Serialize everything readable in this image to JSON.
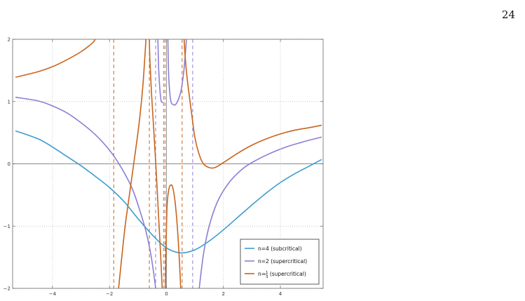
{
  "page": {
    "number": "24"
  },
  "chart_data": {
    "type": "line",
    "title": "",
    "xlabel": "",
    "ylabel": "",
    "xlim": [
      -5.4,
      5.5
    ],
    "ylim": [
      -2,
      2
    ],
    "grid": true,
    "legend_position": "bottom-right",
    "x_ticks": [
      -4,
      -2,
      0,
      2,
      4
    ],
    "y_ticks": [
      -2,
      -1,
      0,
      1,
      2
    ],
    "x_tick_labels": [
      "−4",
      "−2",
      "0",
      "2",
      "4"
    ],
    "y_tick_labels": [
      "−2",
      "−1",
      "0",
      "1",
      "2"
    ],
    "series": [
      {
        "name": "n=4 (subcritical)",
        "label": "n=4 (subcritical)",
        "color": "#3b9ccf",
        "segments": [
          [
            [
              -5.3,
              0.53
            ],
            [
              -4.5,
              0.4
            ],
            [
              -4,
              0.27
            ],
            [
              -3.5,
              0.12
            ],
            [
              -3,
              -0.03
            ],
            [
              -2.5,
              -0.2
            ],
            [
              -2,
              -0.38
            ],
            [
              -1.5,
              -0.6
            ],
            [
              -1,
              -0.88
            ],
            [
              -0.5,
              -1.14
            ],
            [
              0,
              -1.35
            ],
            [
              0.5,
              -1.43
            ],
            [
              1,
              -1.38
            ],
            [
              1.5,
              -1.24
            ],
            [
              2,
              -1.06
            ],
            [
              2.5,
              -0.86
            ],
            [
              3,
              -0.66
            ],
            [
              3.5,
              -0.47
            ],
            [
              4,
              -0.3
            ],
            [
              4.5,
              -0.16
            ],
            [
              5,
              -0.04
            ],
            [
              5.45,
              0.07
            ]
          ]
        ],
        "asymptotes": []
      },
      {
        "name": "n=2 (supercritical)",
        "label": "n=2 (supercritical)",
        "color": "#8c7fd4",
        "segments": [
          [
            [
              -5.3,
              1.07
            ],
            [
              -4.5,
              1.01
            ],
            [
              -4,
              0.93
            ],
            [
              -3.5,
              0.82
            ],
            [
              -3,
              0.66
            ],
            [
              -2.5,
              0.47
            ],
            [
              -2,
              0.22
            ],
            [
              -1.6,
              -0.05
            ],
            [
              -1.2,
              -0.4
            ],
            [
              -0.9,
              -0.8
            ],
            [
              -0.7,
              -1.12
            ],
            [
              -0.55,
              -1.45
            ],
            [
              -0.45,
              -1.75
            ],
            [
              -0.38,
              -2.0
            ]
          ],
          [
            [
              -0.3,
              2.0
            ],
            [
              -0.27,
              1.5
            ],
            [
              -0.2,
              1.05
            ],
            [
              -0.12,
              0.98
            ]
          ],
          [
            [
              0.05,
              2.0
            ],
            [
              0.08,
              1.4
            ],
            [
              0.15,
              1.02
            ],
            [
              0.25,
              0.95
            ],
            [
              0.35,
              0.97
            ],
            [
              0.5,
              1.15
            ],
            [
              0.6,
              1.45
            ],
            [
              0.67,
              1.8
            ],
            [
              0.7,
              2.0
            ]
          ],
          [
            [
              1.15,
              -2.0
            ],
            [
              1.3,
              -1.45
            ],
            [
              1.5,
              -1.0
            ],
            [
              1.8,
              -0.6
            ],
            [
              2.2,
              -0.3
            ],
            [
              2.7,
              -0.07
            ],
            [
              3.2,
              0.07
            ],
            [
              3.7,
              0.18
            ],
            [
              4.2,
              0.27
            ],
            [
              4.7,
              0.34
            ],
            [
              5.1,
              0.39
            ],
            [
              5.45,
              0.43
            ]
          ]
        ],
        "asymptotes": [
          -0.38,
          -0.1,
          0.92
        ]
      },
      {
        "name": "n=1/3 (supercritical)",
        "label_prefix": "n=",
        "label_num": "1",
        "label_den": "3",
        "label_suffix": " (supercritical)",
        "color": "#c8641c",
        "segments": [
          [
            [
              -5.3,
              1.39
            ],
            [
              -4.5,
              1.48
            ],
            [
              -4,
              1.56
            ],
            [
              -3.5,
              1.67
            ],
            [
              -3,
              1.8
            ],
            [
              -2.6,
              1.94
            ],
            [
              -2.5,
              2.0
            ]
          ],
          [
            [
              -1.68,
              -2.0
            ],
            [
              -1.58,
              -1.55
            ],
            [
              -1.45,
              -1.0
            ],
            [
              -1.3,
              -0.5
            ],
            [
              -1.15,
              0.0
            ],
            [
              -1.0,
              0.5
            ],
            [
              -0.9,
              0.9
            ],
            [
              -0.82,
              1.3
            ],
            [
              -0.76,
              1.7
            ],
            [
              -0.72,
              2.0
            ]
          ],
          [
            [
              -0.6,
              2.0
            ],
            [
              -0.58,
              1.65
            ],
            [
              -0.52,
              1.1
            ],
            [
              -0.44,
              0.5
            ],
            [
              -0.35,
              -0.2
            ],
            [
              -0.27,
              -0.9
            ],
            [
              -0.2,
              -1.5
            ],
            [
              -0.15,
              -2.0
            ]
          ],
          [
            [
              -0.04,
              -2.0
            ],
            [
              -0.02,
              -1.5
            ],
            [
              0.02,
              -0.7
            ],
            [
              0.08,
              -0.42
            ],
            [
              0.15,
              -0.34
            ],
            [
              0.22,
              -0.38
            ],
            [
              0.3,
              -0.6
            ],
            [
              0.38,
              -1.0
            ],
            [
              0.46,
              -1.6
            ],
            [
              0.5,
              -2.0
            ]
          ],
          [
            [
              0.62,
              2.0
            ],
            [
              0.66,
              1.7
            ],
            [
              0.72,
              1.4
            ],
            [
              0.8,
              1.1
            ],
            [
              0.9,
              0.75
            ],
            [
              1.0,
              0.42
            ],
            [
              1.15,
              0.15
            ],
            [
              1.3,
              0.0
            ],
            [
              1.5,
              -0.06
            ],
            [
              1.7,
              -0.06
            ],
            [
              2.0,
              0.02
            ],
            [
              2.5,
              0.17
            ],
            [
              3.0,
              0.3
            ],
            [
              3.5,
              0.4
            ],
            [
              4.0,
              0.48
            ],
            [
              4.5,
              0.54
            ],
            [
              5.0,
              0.58
            ],
            [
              5.45,
              0.62
            ]
          ]
        ],
        "asymptotes": [
          -1.85,
          -0.6,
          -0.05,
          0.55
        ]
      }
    ]
  }
}
